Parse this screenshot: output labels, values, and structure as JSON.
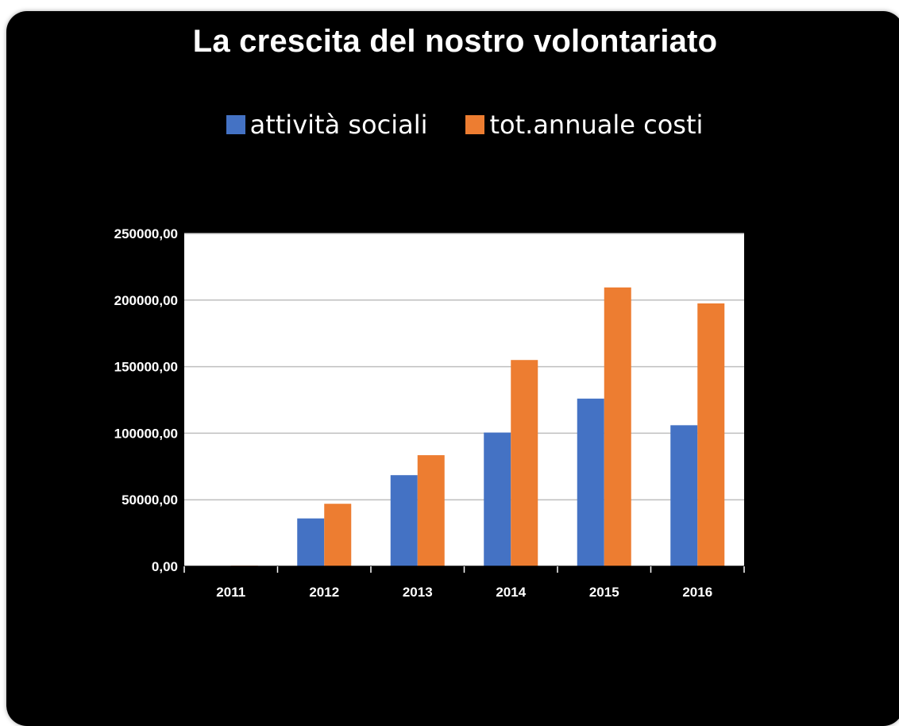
{
  "chart_data": {
    "type": "bar",
    "title": "La crescita del nostro volontariato",
    "categories": [
      "2011",
      "2012",
      "2013",
      "2014",
      "2015",
      "2016"
    ],
    "series": [
      {
        "name": "attività sociali",
        "color": "#4472C4",
        "values": [
          0,
          36000,
          68500,
          100500,
          126000,
          106000
        ]
      },
      {
        "name": "tot.annuale costi",
        "color": "#ED7D31",
        "values": [
          500,
          47000,
          83500,
          155000,
          209500,
          197500
        ]
      }
    ],
    "y_ticks": [
      "0,00",
      "50000,00",
      "100000,00",
      "150000,00",
      "200000,00",
      "250000,00"
    ],
    "ylim": [
      0,
      250000
    ],
    "xlabel": "",
    "ylabel": "",
    "grid": true,
    "legend_position": "top",
    "colors": {
      "background": "#000000",
      "plot_area": "#ffffff",
      "gridline": "#bfbfbf",
      "text": "#ffffff"
    }
  }
}
